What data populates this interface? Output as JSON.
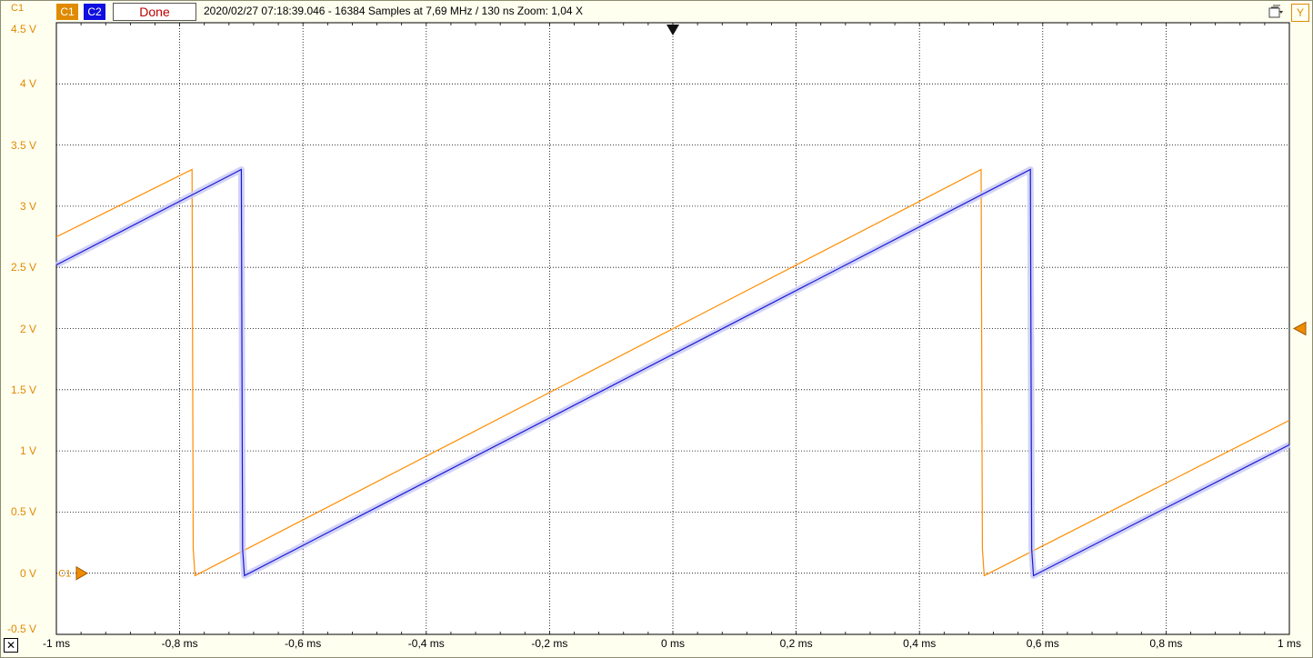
{
  "header": {
    "axis_channel": "C1",
    "channel_tags": [
      {
        "label": "C1",
        "color": "#e08a00"
      },
      {
        "label": "C2",
        "color": "#1010e0"
      }
    ],
    "status": "Done",
    "info": "2020/02/27  07:18:39.046 - 16384 Samples at 7,69 MHz / 130 ns Zoom: 1,04 X",
    "y_button": "Y"
  },
  "y_axis": {
    "labels": [
      "4.5 V",
      "4 V",
      "3.5 V",
      "3 V",
      "2.5 V",
      "2 V",
      "1.5 V",
      "1 V",
      "0.5 V",
      "0 V",
      "-0.5 V"
    ],
    "values": [
      4.5,
      4,
      3.5,
      3,
      2.5,
      2,
      1.5,
      1,
      0.5,
      0,
      -0.5
    ],
    "color": "#e08a00"
  },
  "x_axis": {
    "labels": [
      "-1 ms",
      "-0,8 ms",
      "-0,6 ms",
      "-0,4 ms",
      "-0,2 ms",
      "0 ms",
      "0,2 ms",
      "0,4 ms",
      "0,6 ms",
      "0,8 ms",
      "1 ms"
    ],
    "values": [
      -1,
      -0.8,
      -0.6,
      -0.4,
      -0.2,
      0,
      0.2,
      0.4,
      0.6,
      0.8,
      1
    ]
  },
  "markers": {
    "ground_label": "C1",
    "trigger_level_v": 2,
    "trigger_time_ms": 0
  },
  "chart_data": {
    "type": "line",
    "xlabel": "",
    "ylabel": "",
    "xlim": [
      -1,
      1
    ],
    "ylim": [
      -0.5,
      4.5
    ],
    "grid": true,
    "series": [
      {
        "name": "C1",
        "color": "#ff8c00",
        "x": [
          -1,
          -0.78,
          -0.778,
          -0.775,
          0.5,
          0.502,
          0.505,
          1
        ],
        "y": [
          2.75,
          3.3,
          0.2,
          -0.02,
          3.3,
          0.2,
          -0.02,
          1.25
        ]
      },
      {
        "name": "C2",
        "color": "#1818d8",
        "x": [
          -1,
          -0.7,
          -0.698,
          -0.695,
          0.58,
          0.582,
          0.585,
          1
        ],
        "y": [
          2.52,
          3.3,
          0.2,
          -0.02,
          3.3,
          0.2,
          -0.02,
          1.05
        ]
      }
    ]
  },
  "toolbar": {
    "close_label": "✕"
  }
}
